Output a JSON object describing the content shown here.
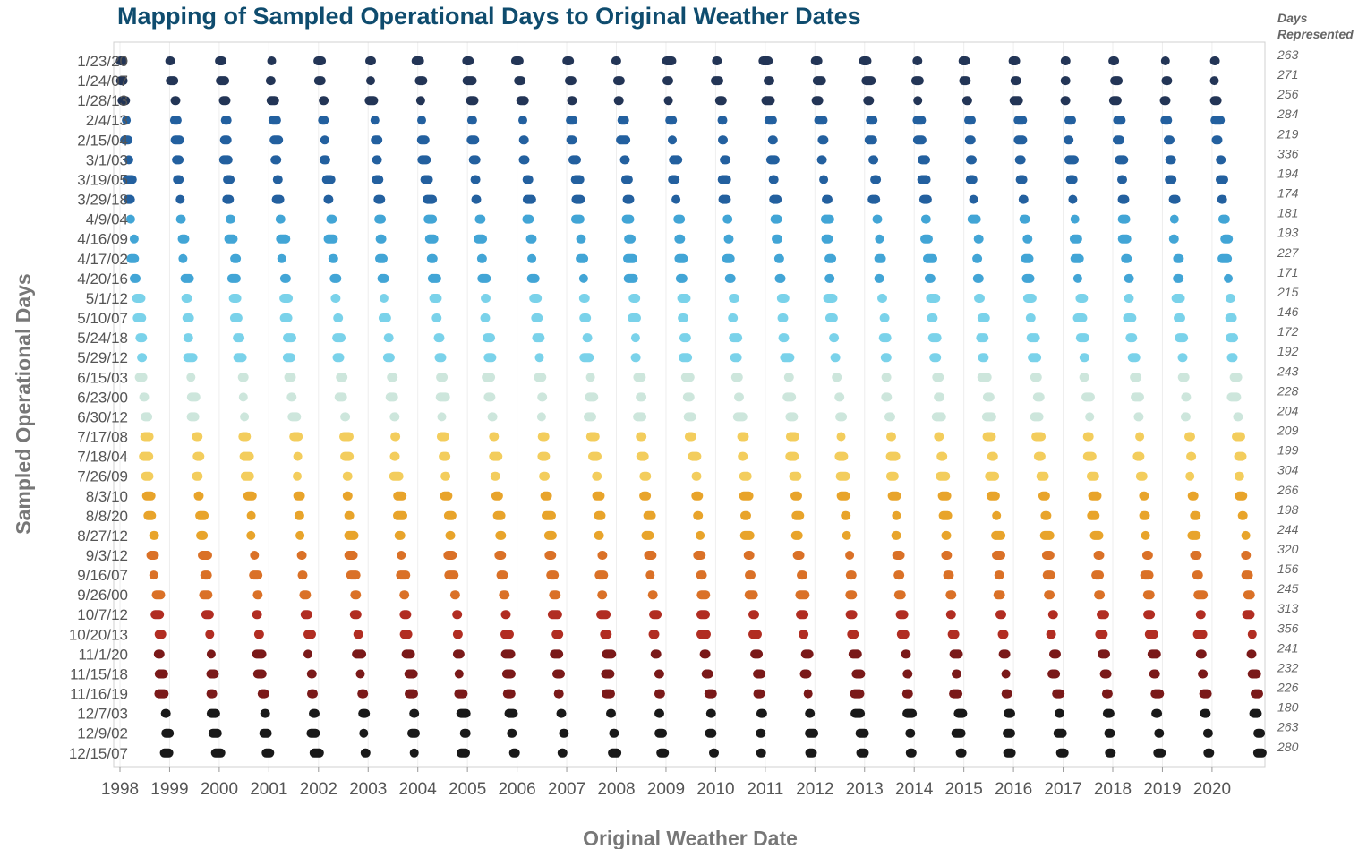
{
  "chart_data": {
    "type": "scatter",
    "title": "Mapping of Sampled Operational Days to Original Weather Dates",
    "xlabel": "Original Weather Date",
    "ylabel": "Sampled Operational Days",
    "side_header": [
      "Days",
      "Represented"
    ],
    "x_ticks": [
      "1998",
      "1999",
      "2000",
      "2001",
      "2002",
      "2003",
      "2004",
      "2005",
      "2006",
      "2007",
      "2008",
      "2009",
      "2010",
      "2011",
      "2012",
      "2013",
      "2014",
      "2015",
      "2016",
      "2017",
      "2018",
      "2019",
      "2020"
    ],
    "xlim": [
      1998,
      2021.05
    ],
    "grid": "vertical",
    "categories": [
      "1/23/20",
      "1/24/07",
      "1/28/13",
      "2/4/13",
      "2/15/04",
      "3/1/03",
      "3/19/05",
      "3/29/18",
      "4/9/04",
      "4/16/09",
      "4/17/02",
      "4/20/16",
      "5/1/12",
      "5/10/07",
      "5/24/18",
      "5/29/12",
      "6/15/03",
      "6/23/00",
      "6/30/12",
      "7/17/08",
      "7/18/04",
      "7/26/09",
      "8/3/10",
      "8/8/20",
      "8/27/12",
      "9/3/12",
      "9/16/07",
      "9/26/00",
      "10/7/12",
      "10/20/13",
      "11/1/20",
      "11/15/18",
      "11/16/19",
      "12/7/03",
      "12/9/02",
      "12/15/07"
    ],
    "days_represented": [
      263,
      271,
      256,
      284,
      219,
      336,
      194,
      174,
      181,
      193,
      227,
      171,
      215,
      146,
      172,
      192,
      243,
      228,
      204,
      209,
      199,
      304,
      266,
      198,
      244,
      320,
      156,
      245,
      313,
      356,
      241,
      232,
      226,
      180,
      263,
      280
    ],
    "series_description": "Each row (sampled operational day) shows one point cluster per weather year 1998-2020, placed at the original weather dates (day of year) that it represents; color follows the season of the sampled day from dark navy (January) through light blue (May-June), yellow/orange (July-September) to dark red/black (November-December).",
    "colors": {
      "winter": "#0b1f44",
      "early_spring": "#0b4f95",
      "spring": "#2e9bd1",
      "late_spring": "#6ccde8",
      "early_summer": "#c8e3d8",
      "summer": "#f2c84b",
      "late_summer": "#e69a14",
      "fall": "#d6620f",
      "late_fall": "#a8160a",
      "early_winter": "#6b0000",
      "year_end": "#000000",
      "title": "#0f4c6e"
    }
  }
}
